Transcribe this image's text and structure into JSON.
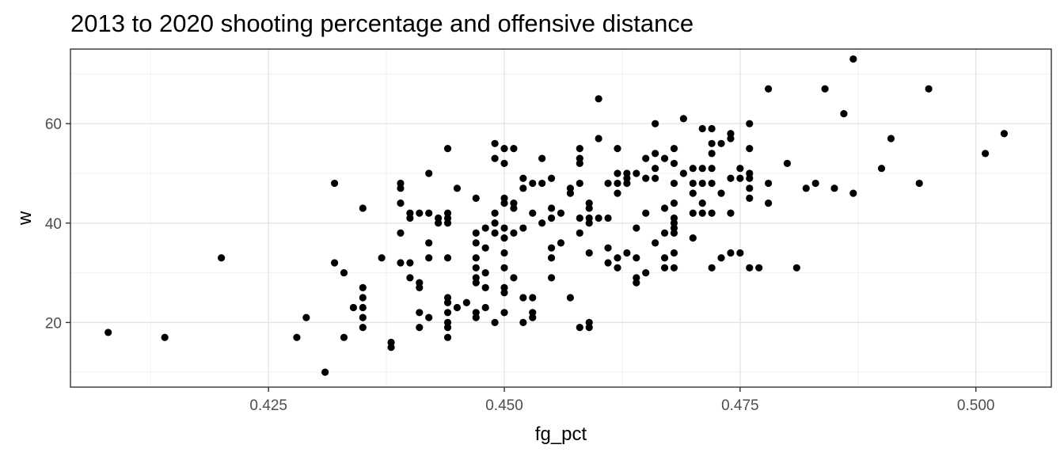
{
  "chart_data": {
    "type": "scatter",
    "title": "2013 to 2020 shooting percentage and offensive distance",
    "xlabel": "fg_pct",
    "ylabel": "w",
    "xlim": [
      0.404,
      0.508
    ],
    "ylim": [
      7,
      75
    ],
    "xticks": [
      0.425,
      0.45,
      0.475,
      0.5
    ],
    "xtick_labels": [
      "0.425",
      "0.450",
      "0.475",
      "0.500"
    ],
    "yticks": [
      20,
      40,
      60
    ],
    "ytick_labels": [
      "20",
      "40",
      "60"
    ],
    "grid": true,
    "theme": "bw",
    "point_color": "#000000",
    "points": [
      [
        0.408,
        18
      ],
      [
        0.414,
        17
      ],
      [
        0.42,
        33
      ],
      [
        0.428,
        17
      ],
      [
        0.429,
        21
      ],
      [
        0.431,
        10
      ],
      [
        0.432,
        48
      ],
      [
        0.432,
        32
      ],
      [
        0.433,
        30
      ],
      [
        0.433,
        17
      ],
      [
        0.434,
        23
      ],
      [
        0.435,
        43
      ],
      [
        0.435,
        27
      ],
      [
        0.435,
        25
      ],
      [
        0.435,
        23
      ],
      [
        0.435,
        21
      ],
      [
        0.435,
        19
      ],
      [
        0.437,
        33
      ],
      [
        0.438,
        16
      ],
      [
        0.438,
        15
      ],
      [
        0.439,
        48
      ],
      [
        0.439,
        47
      ],
      [
        0.439,
        44
      ],
      [
        0.439,
        38
      ],
      [
        0.439,
        32
      ],
      [
        0.44,
        42
      ],
      [
        0.44,
        41
      ],
      [
        0.44,
        32
      ],
      [
        0.44,
        29
      ],
      [
        0.441,
        42
      ],
      [
        0.441,
        28
      ],
      [
        0.441,
        27
      ],
      [
        0.441,
        22
      ],
      [
        0.441,
        19
      ],
      [
        0.442,
        50
      ],
      [
        0.442,
        42
      ],
      [
        0.442,
        36
      ],
      [
        0.442,
        33
      ],
      [
        0.442,
        21
      ],
      [
        0.443,
        41
      ],
      [
        0.443,
        40
      ],
      [
        0.444,
        55
      ],
      [
        0.444,
        42
      ],
      [
        0.444,
        41
      ],
      [
        0.444,
        40
      ],
      [
        0.444,
        33
      ],
      [
        0.444,
        25
      ],
      [
        0.444,
        24
      ],
      [
        0.444,
        22
      ],
      [
        0.444,
        20
      ],
      [
        0.444,
        19
      ],
      [
        0.444,
        17
      ],
      [
        0.445,
        47
      ],
      [
        0.445,
        23
      ],
      [
        0.446,
        24
      ],
      [
        0.447,
        45
      ],
      [
        0.447,
        38
      ],
      [
        0.447,
        36
      ],
      [
        0.447,
        33
      ],
      [
        0.447,
        31
      ],
      [
        0.447,
        29
      ],
      [
        0.447,
        28
      ],
      [
        0.447,
        22
      ],
      [
        0.447,
        21
      ],
      [
        0.448,
        39
      ],
      [
        0.448,
        35
      ],
      [
        0.448,
        30
      ],
      [
        0.448,
        27
      ],
      [
        0.448,
        23
      ],
      [
        0.449,
        56
      ],
      [
        0.449,
        53
      ],
      [
        0.449,
        42
      ],
      [
        0.449,
        40
      ],
      [
        0.449,
        38
      ],
      [
        0.449,
        20
      ],
      [
        0.45,
        55
      ],
      [
        0.45,
        52
      ],
      [
        0.45,
        45
      ],
      [
        0.45,
        44
      ],
      [
        0.45,
        39
      ],
      [
        0.45,
        37
      ],
      [
        0.45,
        34
      ],
      [
        0.45,
        31
      ],
      [
        0.45,
        27
      ],
      [
        0.45,
        26
      ],
      [
        0.45,
        22
      ],
      [
        0.451,
        55
      ],
      [
        0.451,
        44
      ],
      [
        0.451,
        43
      ],
      [
        0.451,
        38
      ],
      [
        0.451,
        29
      ],
      [
        0.452,
        49
      ],
      [
        0.452,
        47
      ],
      [
        0.452,
        39
      ],
      [
        0.452,
        25
      ],
      [
        0.452,
        20
      ],
      [
        0.453,
        48
      ],
      [
        0.453,
        42
      ],
      [
        0.453,
        25
      ],
      [
        0.453,
        22
      ],
      [
        0.453,
        21
      ],
      [
        0.454,
        53
      ],
      [
        0.454,
        48
      ],
      [
        0.454,
        40
      ],
      [
        0.455,
        49
      ],
      [
        0.455,
        43
      ],
      [
        0.455,
        41
      ],
      [
        0.455,
        35
      ],
      [
        0.455,
        33
      ],
      [
        0.455,
        29
      ],
      [
        0.456,
        42
      ],
      [
        0.456,
        36
      ],
      [
        0.457,
        47
      ],
      [
        0.457,
        46
      ],
      [
        0.457,
        25
      ],
      [
        0.458,
        55
      ],
      [
        0.458,
        53
      ],
      [
        0.458,
        52
      ],
      [
        0.458,
        48
      ],
      [
        0.458,
        41
      ],
      [
        0.458,
        38
      ],
      [
        0.458,
        19
      ],
      [
        0.459,
        44
      ],
      [
        0.459,
        43
      ],
      [
        0.459,
        41
      ],
      [
        0.459,
        40
      ],
      [
        0.459,
        34
      ],
      [
        0.459,
        20
      ],
      [
        0.459,
        19
      ],
      [
        0.46,
        65
      ],
      [
        0.46,
        57
      ],
      [
        0.46,
        41
      ],
      [
        0.461,
        48
      ],
      [
        0.461,
        41
      ],
      [
        0.461,
        35
      ],
      [
        0.461,
        32
      ],
      [
        0.462,
        55
      ],
      [
        0.462,
        50
      ],
      [
        0.462,
        48
      ],
      [
        0.462,
        46
      ],
      [
        0.462,
        33
      ],
      [
        0.462,
        31
      ],
      [
        0.463,
        50
      ],
      [
        0.463,
        49
      ],
      [
        0.463,
        48
      ],
      [
        0.463,
        34
      ],
      [
        0.464,
        50
      ],
      [
        0.464,
        39
      ],
      [
        0.464,
        33
      ],
      [
        0.464,
        29
      ],
      [
        0.464,
        28
      ],
      [
        0.465,
        53
      ],
      [
        0.465,
        49
      ],
      [
        0.465,
        42
      ],
      [
        0.465,
        30
      ],
      [
        0.466,
        60
      ],
      [
        0.466,
        54
      ],
      [
        0.466,
        51
      ],
      [
        0.466,
        49
      ],
      [
        0.466,
        36
      ],
      [
        0.467,
        53
      ],
      [
        0.467,
        43
      ],
      [
        0.467,
        38
      ],
      [
        0.467,
        33
      ],
      [
        0.467,
        31
      ],
      [
        0.468,
        55
      ],
      [
        0.468,
        52
      ],
      [
        0.468,
        48
      ],
      [
        0.468,
        44
      ],
      [
        0.468,
        41
      ],
      [
        0.468,
        40
      ],
      [
        0.468,
        39
      ],
      [
        0.468,
        38
      ],
      [
        0.468,
        34
      ],
      [
        0.468,
        31
      ],
      [
        0.469,
        61
      ],
      [
        0.469,
        50
      ],
      [
        0.47,
        51
      ],
      [
        0.47,
        48
      ],
      [
        0.47,
        46
      ],
      [
        0.47,
        42
      ],
      [
        0.47,
        37
      ],
      [
        0.471,
        59
      ],
      [
        0.471,
        51
      ],
      [
        0.471,
        48
      ],
      [
        0.471,
        44
      ],
      [
        0.471,
        42
      ],
      [
        0.472,
        59
      ],
      [
        0.472,
        56
      ],
      [
        0.472,
        54
      ],
      [
        0.472,
        51
      ],
      [
        0.472,
        48
      ],
      [
        0.472,
        42
      ],
      [
        0.472,
        31
      ],
      [
        0.473,
        56
      ],
      [
        0.473,
        46
      ],
      [
        0.473,
        33
      ],
      [
        0.474,
        58
      ],
      [
        0.474,
        57
      ],
      [
        0.474,
        49
      ],
      [
        0.474,
        42
      ],
      [
        0.474,
        34
      ],
      [
        0.475,
        51
      ],
      [
        0.475,
        49
      ],
      [
        0.475,
        34
      ],
      [
        0.476,
        60
      ],
      [
        0.476,
        55
      ],
      [
        0.476,
        50
      ],
      [
        0.476,
        49
      ],
      [
        0.476,
        47
      ],
      [
        0.476,
        45
      ],
      [
        0.476,
        31
      ],
      [
        0.477,
        31
      ],
      [
        0.478,
        67
      ],
      [
        0.478,
        48
      ],
      [
        0.478,
        44
      ],
      [
        0.48,
        52
      ],
      [
        0.481,
        31
      ],
      [
        0.482,
        47
      ],
      [
        0.483,
        48
      ],
      [
        0.484,
        67
      ],
      [
        0.485,
        47
      ],
      [
        0.486,
        62
      ],
      [
        0.487,
        73
      ],
      [
        0.487,
        46
      ],
      [
        0.49,
        51
      ],
      [
        0.491,
        57
      ],
      [
        0.494,
        48
      ],
      [
        0.495,
        67
      ],
      [
        0.501,
        54
      ],
      [
        0.503,
        58
      ]
    ]
  }
}
